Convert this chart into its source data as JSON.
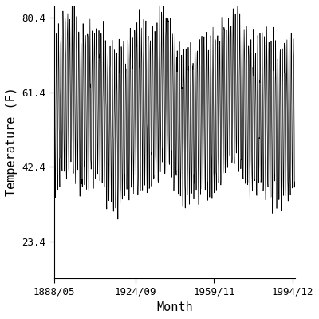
{
  "title": "",
  "xlabel": "Month",
  "ylabel": "Temperature (F)",
  "x_tick_labels": [
    "1888/05",
    "1924/09",
    "1959/11",
    "1994/12"
  ],
  "y_tick_labels": [
    23.4,
    42.4,
    61.4,
    80.4
  ],
  "ylim": [
    14.0,
    83.5
  ],
  "start_year": 1888,
  "start_month": 5,
  "end_year": 1995,
  "end_month": 12,
  "annual_mean": 57.0,
  "amplitude": 19.0,
  "noise_std": 2.5,
  "background_color": "#ffffff",
  "line_color": "#000000",
  "line_width": 0.5,
  "fig_width": 4.0,
  "fig_height": 4.0,
  "dpi": 100,
  "font_family": "monospace",
  "font_size_ticks": 9,
  "font_size_labels": 11
}
